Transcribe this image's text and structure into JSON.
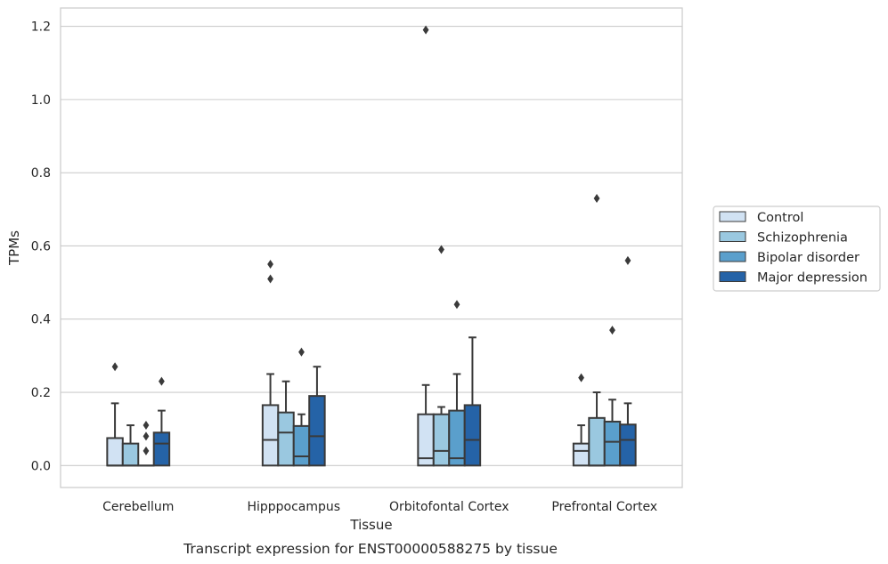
{
  "chart_data": {
    "type": "boxplot",
    "title": "",
    "caption": "Transcript expression for ENST00000588275 by tissue",
    "xlabel": "Tissue",
    "ylabel": "TPMs",
    "ylim": [
      -0.06,
      1.25
    ],
    "yticks": [
      0.0,
      0.2,
      0.4,
      0.6,
      0.8,
      1.0,
      1.2
    ],
    "ytick_labels": [
      "0.0",
      "0.2",
      "0.4",
      "0.6",
      "0.8",
      "1.0",
      "1.2"
    ],
    "grid": "horizontal",
    "legend_position": "right",
    "categories": [
      "Cerebellum",
      "Hipppocampus",
      "Orbitofontal Cortex",
      "Prefrontal Cortex"
    ],
    "series": [
      {
        "name": "Control",
        "color": "#d1e2f3",
        "boxes": [
          {
            "min": 0.0,
            "q1": 0.0,
            "median": 0.0,
            "q3": 0.075,
            "max": 0.17,
            "outliers": [
              0.27
            ]
          },
          {
            "min": 0.0,
            "q1": 0.0,
            "median": 0.07,
            "q3": 0.165,
            "max": 0.25,
            "outliers": [
              0.51,
              0.55
            ]
          },
          {
            "min": 0.0,
            "q1": 0.0,
            "median": 0.02,
            "q3": 0.14,
            "max": 0.22,
            "outliers": [
              1.19
            ]
          },
          {
            "min": 0.0,
            "q1": 0.0,
            "median": 0.04,
            "q3": 0.06,
            "max": 0.11,
            "outliers": [
              0.24
            ]
          }
        ]
      },
      {
        "name": "Schizophrenia",
        "color": "#9ac8e0",
        "boxes": [
          {
            "min": 0.0,
            "q1": 0.0,
            "median": 0.0,
            "q3": 0.06,
            "max": 0.11,
            "outliers": []
          },
          {
            "min": 0.0,
            "q1": 0.0,
            "median": 0.09,
            "q3": 0.145,
            "max": 0.23,
            "outliers": []
          },
          {
            "min": 0.0,
            "q1": 0.0,
            "median": 0.04,
            "q3": 0.14,
            "max": 0.16,
            "outliers": [
              0.59
            ]
          },
          {
            "min": 0.0,
            "q1": 0.0,
            "median": 0.0,
            "q3": 0.13,
            "max": 0.2,
            "outliers": [
              0.73
            ]
          }
        ]
      },
      {
        "name": "Bipolar disorder",
        "color": "#5a9fcc",
        "boxes": [
          {
            "min": 0.0,
            "q1": 0.0,
            "median": 0.0,
            "q3": 0.0,
            "max": 0.0,
            "outliers": [
              0.04,
              0.08,
              0.11
            ]
          },
          {
            "min": 0.0,
            "q1": 0.0,
            "median": 0.025,
            "q3": 0.108,
            "max": 0.14,
            "outliers": [
              0.31
            ]
          },
          {
            "min": 0.0,
            "q1": 0.0,
            "median": 0.02,
            "q3": 0.15,
            "max": 0.25,
            "outliers": [
              0.44
            ]
          },
          {
            "min": 0.0,
            "q1": 0.0,
            "median": 0.065,
            "q3": 0.12,
            "max": 0.18,
            "outliers": [
              0.37
            ]
          }
        ]
      },
      {
        "name": "Major depression",
        "color": "#2563a7",
        "boxes": [
          {
            "min": 0.0,
            "q1": 0.0,
            "median": 0.06,
            "q3": 0.09,
            "max": 0.15,
            "outliers": [
              0.23
            ]
          },
          {
            "min": 0.0,
            "q1": 0.0,
            "median": 0.08,
            "q3": 0.19,
            "max": 0.27,
            "outliers": []
          },
          {
            "min": 0.0,
            "q1": 0.0,
            "median": 0.07,
            "q3": 0.165,
            "max": 0.35,
            "outliers": []
          },
          {
            "min": 0.0,
            "q1": 0.0,
            "median": 0.07,
            "q3": 0.112,
            "max": 0.17,
            "outliers": [
              0.56
            ]
          }
        ]
      }
    ]
  }
}
